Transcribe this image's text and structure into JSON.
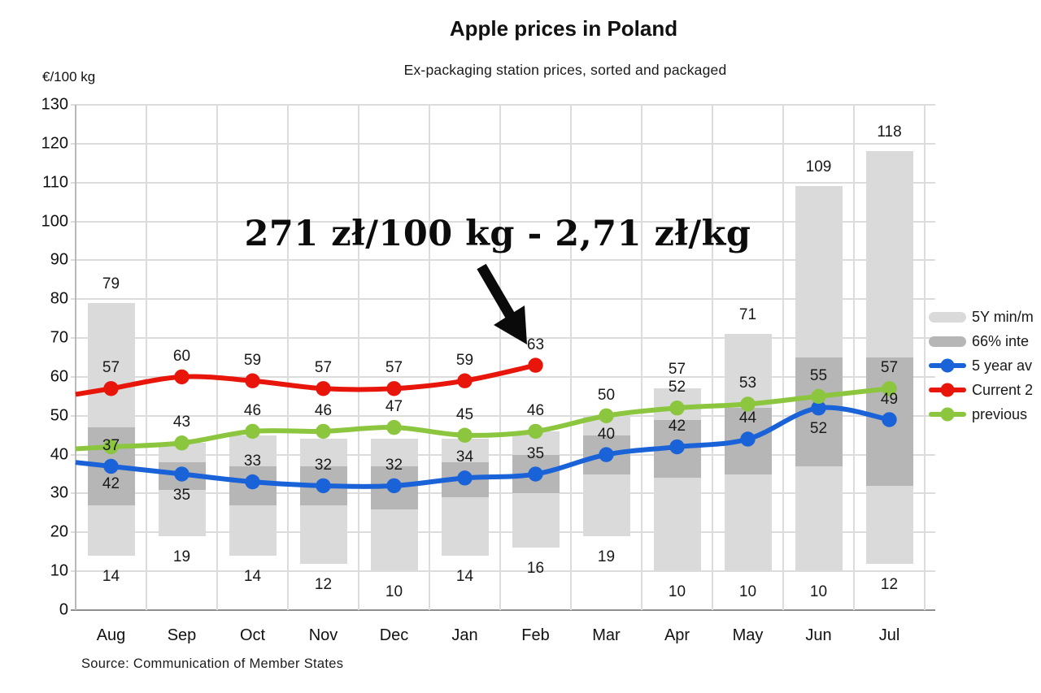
{
  "chart_data": {
    "type": "bar",
    "subtype": "range-bars-with-line-series",
    "title": "Apple prices in Poland",
    "subtitle": "Ex-packaging station prices, sorted and packaged",
    "ylabel": "€/100 kg",
    "ylim": [
      0,
      130
    ],
    "yticks": [
      0,
      10,
      20,
      30,
      40,
      50,
      60,
      70,
      80,
      90,
      100,
      110,
      120,
      130
    ],
    "grid": true,
    "legend_position": "right",
    "categories": [
      "Aug",
      "Sep",
      "Oct",
      "Nov",
      "Dec",
      "Jan",
      "Feb",
      "Mar",
      "Apr",
      "May",
      "Jun",
      "Jul"
    ],
    "range_min": [
      14,
      19,
      14,
      12,
      10,
      14,
      16,
      19,
      10,
      10,
      10,
      12
    ],
    "range_max": [
      79,
      43,
      45,
      44,
      44,
      44,
      46,
      50,
      57,
      71,
      109,
      118
    ],
    "range_max_labeled": [
      true,
      false,
      false,
      false,
      false,
      false,
      false,
      false,
      true,
      true,
      true,
      true
    ],
    "range_min_labeled": [
      true,
      true,
      true,
      true,
      true,
      true,
      true,
      true,
      true,
      true,
      true,
      true
    ],
    "p66_low": [
      27,
      31,
      27,
      27,
      26,
      29,
      30,
      35,
      34,
      35,
      37,
      32
    ],
    "p66_high": [
      47,
      38,
      37,
      37,
      37,
      38,
      40,
      45,
      49,
      52,
      65,
      65
    ],
    "series": [
      {
        "name": "5 year av",
        "color": "#1a62d8",
        "values": [
          37,
          35,
          33,
          32,
          32,
          34,
          35,
          40,
          42,
          44,
          52,
          49
        ],
        "label_pos": [
          "above",
          "below",
          "above",
          "above",
          "above",
          "above",
          "above",
          "above",
          "above",
          "above",
          "below",
          "above"
        ],
        "edge_start_value": 38
      },
      {
        "name": "previous",
        "color": "#8cc63f",
        "values": [
          42,
          43,
          46,
          46,
          47,
          45,
          46,
          50,
          52,
          53,
          55,
          57
        ],
        "label_pos": [
          "below-far",
          "above",
          "above",
          "above",
          "above",
          "above",
          "above",
          "above",
          "above",
          "above",
          "above",
          "above"
        ],
        "edge_start_value": 41.5
      },
      {
        "name": "Current 2",
        "color": "#e8150b",
        "values": [
          57,
          60,
          59,
          57,
          57,
          59,
          63,
          null,
          null,
          null,
          null,
          null
        ],
        "label_pos": [
          "above",
          "above",
          "above",
          "above",
          "above",
          "above",
          "above",
          null,
          null,
          null,
          null,
          null
        ],
        "edge_start_value": 55.5
      }
    ],
    "legend": [
      {
        "label": "5Y min/m",
        "swatch": "box",
        "color": "#dadada"
      },
      {
        "label": "66% inte",
        "swatch": "box",
        "color": "#b6b6b6"
      },
      {
        "label": "5 year av",
        "swatch": "line-dot",
        "color": "#1a62d8"
      },
      {
        "label": "Current 2",
        "swatch": "line-dot",
        "color": "#e8150b"
      },
      {
        "label": "previous",
        "swatch": "line-dot",
        "color": "#8cc63f"
      }
    ],
    "annotation": {
      "text": "271 zł/100 kg - 2,71 zł/kg"
    },
    "source": "Source: Communication of Member States"
  }
}
